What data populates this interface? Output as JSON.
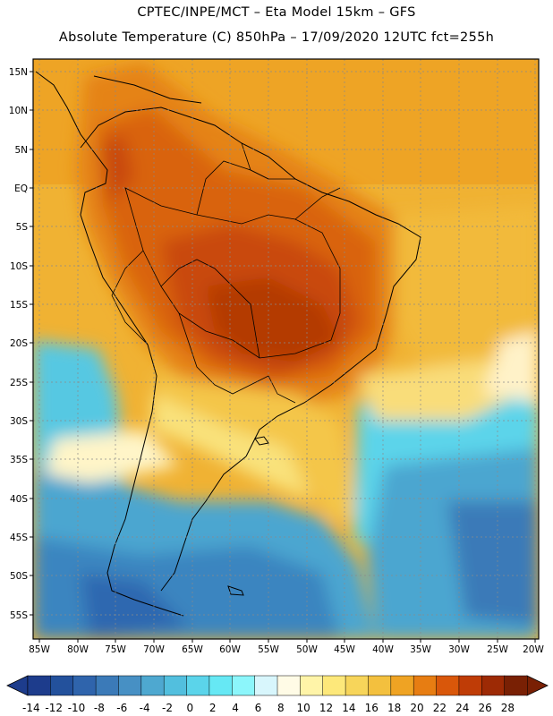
{
  "header": {
    "line1": "CPTEC/INPE/MCT –  Eta Model 15km – GFS",
    "line2": "Absolute Temperature (C) 850hPa – 17/09/2020 12UTC fct=255h"
  },
  "map": {
    "lat_labels": [
      "15N",
      "10N",
      "5N",
      "EQ",
      "5S",
      "10S",
      "15S",
      "20S",
      "25S",
      "30S",
      "35S",
      "40S",
      "45S",
      "50S",
      "55S"
    ],
    "lon_labels": [
      "85W",
      "80W",
      "75W",
      "70W",
      "65W",
      "60W",
      "55W",
      "50W",
      "45W",
      "40W",
      "35W",
      "30W",
      "25W",
      "20W"
    ],
    "grid": "dotted"
  },
  "colorbar": {
    "labels": [
      "-14",
      "-12",
      "-10",
      "-8",
      "-6",
      "-4",
      "-2",
      "0",
      "2",
      "4",
      "6",
      "8",
      "10",
      "12",
      "14",
      "16",
      "18",
      "20",
      "22",
      "24",
      "26",
      "28"
    ],
    "colors": [
      "#1d3c8c",
      "#23519c",
      "#2f64ac",
      "#3b7ab8",
      "#4790c4",
      "#4ea8d0",
      "#52bfde",
      "#5bd4ea",
      "#66e8f4",
      "#8cf6fb",
      "#d8f6fc",
      "#fffbe6",
      "#fff4a8",
      "#fde87a",
      "#f7d55a",
      "#f3c03e",
      "#efa323",
      "#e77d12",
      "#d9570a",
      "#bf3c06",
      "#9d2a05",
      "#792004"
    ]
  }
}
